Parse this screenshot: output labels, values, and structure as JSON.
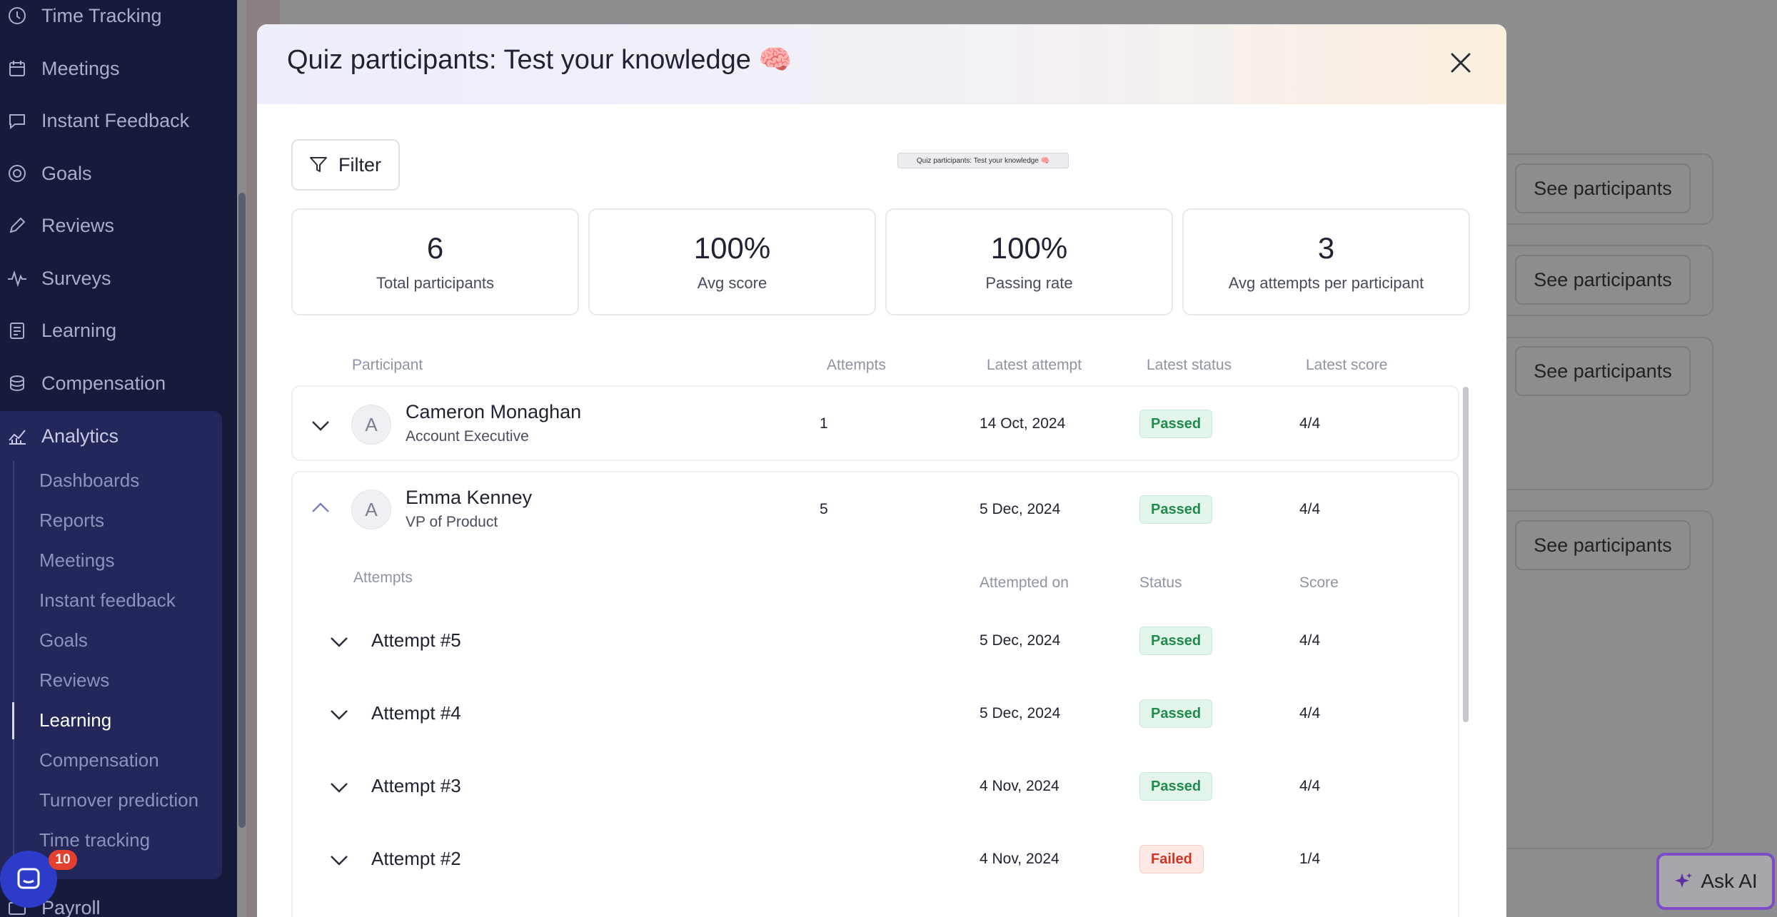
{
  "sidebar": {
    "items": [
      {
        "label": "Time Tracking",
        "icon": "clock-icon"
      },
      {
        "label": "Meetings",
        "icon": "calendar-icon"
      },
      {
        "label": "Instant Feedback",
        "icon": "chat-icon"
      },
      {
        "label": "Goals",
        "icon": "target-icon"
      },
      {
        "label": "Reviews",
        "icon": "pencil-icon"
      },
      {
        "label": "Surveys",
        "icon": "pulse-icon"
      },
      {
        "label": "Learning",
        "icon": "book-icon"
      },
      {
        "label": "Compensation",
        "icon": "coins-icon"
      }
    ],
    "analytics": {
      "label": "Analytics",
      "icon": "chart-icon",
      "subitems": [
        "Dashboards",
        "Reports",
        "Meetings",
        "Instant feedback",
        "Goals",
        "Reviews",
        "Learning",
        "Compensation",
        "Turnover prediction",
        "Time tracking"
      ],
      "active": "Learning"
    },
    "bottom_item": "Payroll"
  },
  "background": {
    "see_participants_label": "See participants",
    "ask_ai_label": "Ask AI",
    "chat_badge_count": "10"
  },
  "modal": {
    "title": "Quiz participants: Test your knowledge 🧠",
    "mini_title": "Quiz participants: Test your knowledge 🧠",
    "filter_label": "Filter",
    "stats": [
      {
        "value": "6",
        "label": "Total participants"
      },
      {
        "value": "100%",
        "label": "Avg score"
      },
      {
        "value": "100%",
        "label": "Passing rate"
      },
      {
        "value": "3",
        "label": "Avg attempts per participant"
      }
    ],
    "columns": {
      "participant": "Participant",
      "attempts": "Attempts",
      "latest_attempt": "Latest attempt",
      "latest_status": "Latest status",
      "latest_score": "Latest score"
    },
    "participants": [
      {
        "initial": "A",
        "name": "Cameron Monaghan",
        "role": "Account Executive",
        "attempts": "1",
        "latest_attempt": "14 Oct, 2024",
        "status": "Passed",
        "score": "4/4",
        "expanded": false
      },
      {
        "initial": "A",
        "name": "Emma Kenney",
        "role": "VP of Product",
        "attempts": "5",
        "latest_attempt": "5 Dec, 2024",
        "status": "Passed",
        "score": "4/4",
        "expanded": true
      }
    ],
    "attempt_columns": {
      "attempts": "Attempts",
      "attempted_on": "Attempted on",
      "status": "Status",
      "score": "Score"
    },
    "attempts": [
      {
        "label": "Attempt #5",
        "date": "5 Dec, 2024",
        "status": "Passed",
        "score": "4/4"
      },
      {
        "label": "Attempt #4",
        "date": "5 Dec, 2024",
        "status": "Passed",
        "score": "4/4"
      },
      {
        "label": "Attempt #3",
        "date": "4 Nov, 2024",
        "status": "Passed",
        "score": "4/4"
      },
      {
        "label": "Attempt #2",
        "date": "4 Nov, 2024",
        "status": "Failed",
        "score": "1/4"
      }
    ]
  }
}
